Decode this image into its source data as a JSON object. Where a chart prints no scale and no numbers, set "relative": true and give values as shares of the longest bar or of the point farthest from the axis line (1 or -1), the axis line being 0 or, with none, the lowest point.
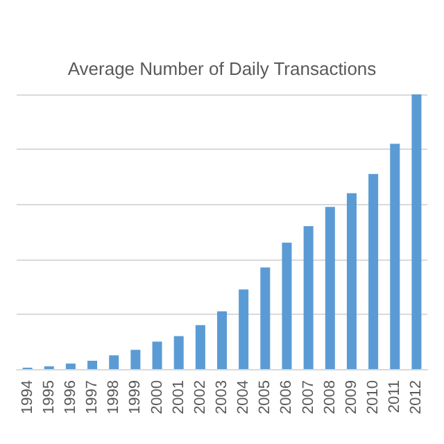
{
  "chart_data": {
    "type": "bar",
    "title": "Average Number of Daily Transactions",
    "categories": [
      "1994",
      "1995",
      "1996",
      "1997",
      "1998",
      "1999",
      "2000",
      "2001",
      "2002",
      "2003",
      "2004",
      "2005",
      "2006",
      "2007",
      "2008",
      "2009",
      "2010",
      "2011",
      "2012"
    ],
    "values": [
      0.005,
      0.01,
      0.02,
      0.03,
      0.05,
      0.07,
      0.1,
      0.12,
      0.16,
      0.21,
      0.29,
      0.37,
      0.46,
      0.52,
      0.59,
      0.64,
      0.71,
      0.82,
      1
    ],
    "color": "#5b9bd5",
    "relative": true,
    "grid": "y"
  }
}
